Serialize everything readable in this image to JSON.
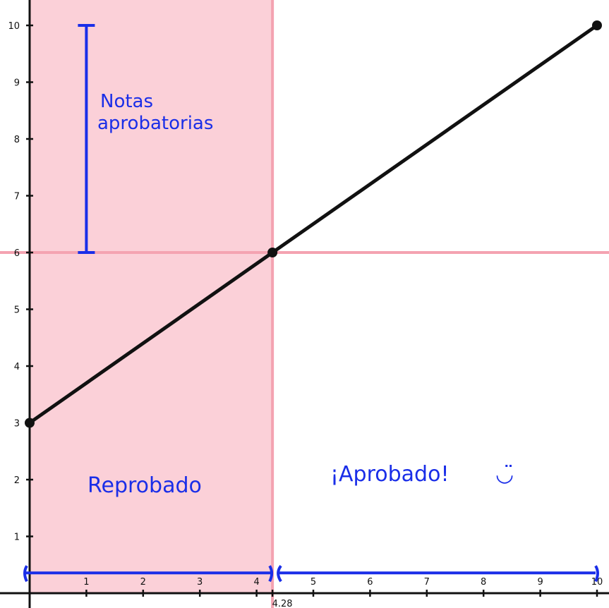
{
  "chart_data": {
    "type": "line",
    "title": "",
    "xlabel": "",
    "ylabel": "",
    "xlim": [
      0,
      10
    ],
    "ylim": [
      0,
      10
    ],
    "x_ticks": [
      "1",
      "2",
      "3",
      "4",
      "5",
      "6",
      "7",
      "8",
      "9",
      "10"
    ],
    "y_ticks": [
      "1",
      "2",
      "3",
      "4",
      "5",
      "6",
      "7",
      "8",
      "9",
      "10"
    ],
    "series": [
      {
        "points": [
          [
            0,
            3
          ],
          [
            4.28,
            6
          ],
          [
            10,
            10
          ]
        ],
        "color": "#111111"
      }
    ],
    "threshold": {
      "y": 6,
      "x": 4.28,
      "x_label": "4.28",
      "color": "#f4a3b1"
    },
    "shaded_region": {
      "x_from": 0,
      "x_to": 4.28,
      "color": "#fbd0d8"
    },
    "annotations": {
      "passing_range": {
        "text_line1": "Notas",
        "text_line2": "aprobatorias",
        "x": 1,
        "y_from": 6,
        "y_to": 10
      },
      "failed": {
        "text": "Reprobado",
        "x_from": 0,
        "x_to": 4.28,
        "y": 1.5
      },
      "passed": {
        "text": "¡Aprobado!",
        "smiley": "◡̈",
        "x_from": 4.28,
        "x_to": 10,
        "y": 1.5
      }
    },
    "grid": false,
    "accent_color": "#1a2ee8"
  }
}
